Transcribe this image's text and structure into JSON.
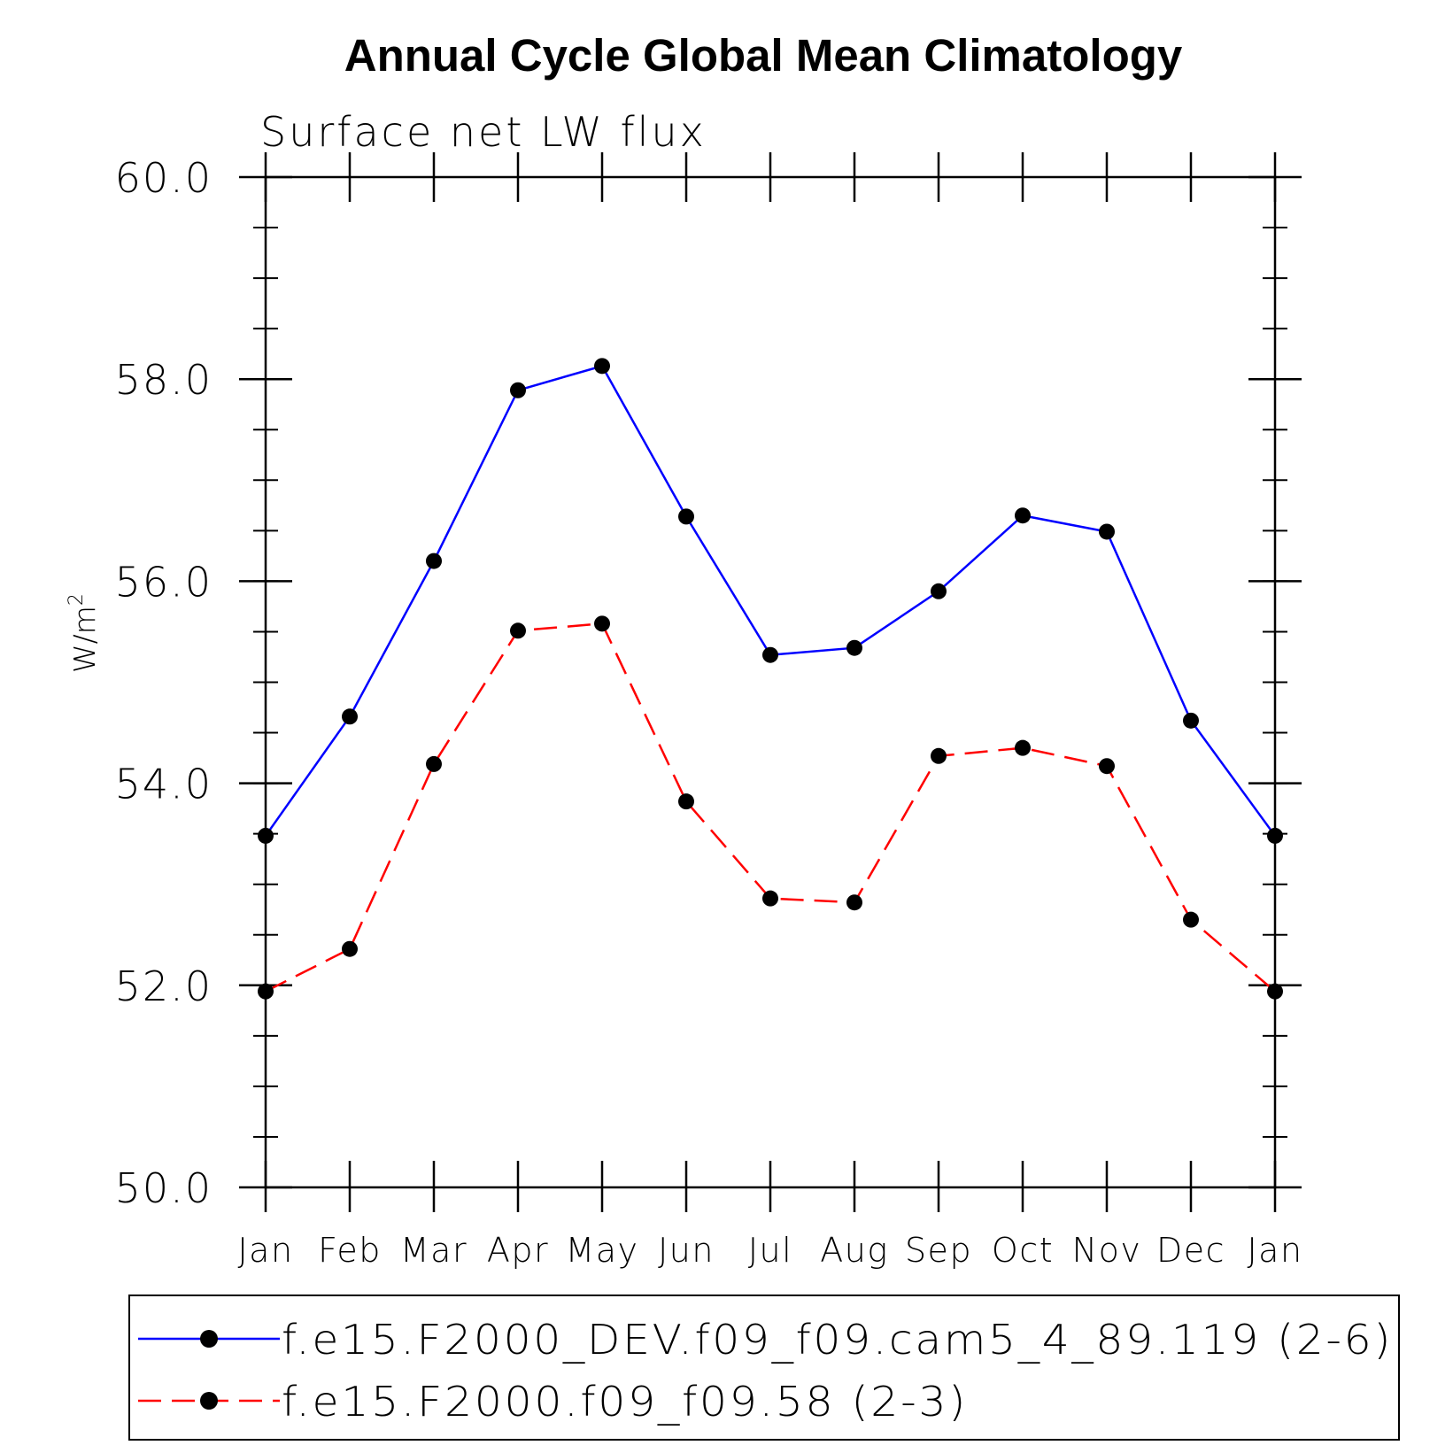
{
  "chart_data": {
    "type": "line",
    "title": "Annual Cycle Global Mean Climatology",
    "subtitle": "Surface net LW flux",
    "ylabel_main": "W/m",
    "ylabel_sup": "2",
    "xlabel": "",
    "categories": [
      "Jan",
      "Feb",
      "Mar",
      "Apr",
      "May",
      "Jun",
      "Jul",
      "Aug",
      "Sep",
      "Oct",
      "Nov",
      "Dec",
      "Jan"
    ],
    "ylim": [
      50.0,
      60.0
    ],
    "y_major_ticks": [
      50.0,
      52.0,
      54.0,
      56.0,
      58.0,
      60.0
    ],
    "y_tick_labels": [
      "50.0",
      "52.0",
      "54.0",
      "56.0",
      "58.0",
      "60.0"
    ],
    "y_minor_step": 0.5,
    "grid": false,
    "legend_position": "bottom",
    "series": [
      {
        "name": "f.e15.F2000_DEV.f09_f09.cam5_4_89.119 (2-6)",
        "color": "#0000ff",
        "line_style": "solid",
        "marker_color": "#000000",
        "values": [
          53.48,
          54.66,
          56.2,
          57.89,
          58.13,
          56.64,
          55.27,
          55.34,
          55.9,
          56.65,
          56.49,
          54.62,
          53.48
        ]
      },
      {
        "name": "f.e15.F2000.f09_f09.58 (2-3)",
        "color": "#ff0000",
        "line_style": "dashed",
        "marker_color": "#000000",
        "values": [
          51.94,
          52.36,
          54.19,
          55.51,
          55.58,
          53.82,
          52.86,
          52.82,
          54.27,
          54.35,
          54.17,
          52.65,
          51.94
        ]
      }
    ]
  }
}
